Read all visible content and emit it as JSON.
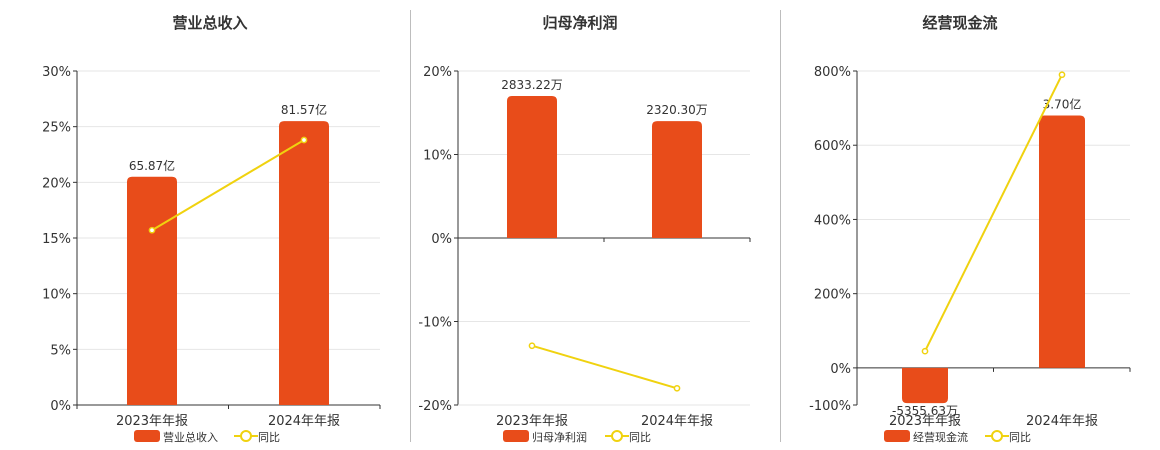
{
  "colors": {
    "bar": "#e84c1a",
    "line": "#f0d20f",
    "axis": "#333333",
    "grid": "#e6e6e6",
    "text": "#333333"
  },
  "legend": {
    "line_label": "同比"
  },
  "chart_data": [
    {
      "type": "bar",
      "title": "营业总收入",
      "categories": [
        "2023年年报",
        "2024年年报"
      ],
      "bar_labels": [
        "65.87亿",
        "81.57亿"
      ],
      "series": [
        {
          "name": "营业总收入",
          "kind": "bar",
          "values": [
            20.5,
            25.5
          ]
        },
        {
          "name": "同比",
          "kind": "line",
          "values": [
            15.7,
            23.8
          ]
        }
      ],
      "ylim": [
        0,
        30
      ],
      "yticks": [
        0,
        5,
        10,
        15,
        20,
        25,
        30
      ],
      "ytick_labels": [
        "0%",
        "5%",
        "10%",
        "15%",
        "20%",
        "25%",
        "30%"
      ],
      "grid": true,
      "legend_position": "bottom"
    },
    {
      "type": "bar",
      "title": "归母净利润",
      "categories": [
        "2023年年报",
        "2024年年报"
      ],
      "bar_labels": [
        "2833.22万",
        "2320.30万"
      ],
      "series": [
        {
          "name": "归母净利润",
          "kind": "bar",
          "values": [
            17.0,
            14.0
          ]
        },
        {
          "name": "同比",
          "kind": "line",
          "values": [
            -12.9,
            -18.0
          ]
        }
      ],
      "ylim": [
        -20,
        20
      ],
      "yticks": [
        -20,
        -10,
        0,
        10,
        20
      ],
      "ytick_labels": [
        "-20%",
        "-10%",
        "0%",
        "10%",
        "20%"
      ],
      "grid": true,
      "legend_position": "bottom"
    },
    {
      "type": "bar",
      "title": "经营现金流",
      "categories": [
        "2023年年报",
        "2024年年报"
      ],
      "bar_labels": [
        "-5355.63万",
        "3.70亿"
      ],
      "series": [
        {
          "name": "经营现金流",
          "kind": "bar",
          "values": [
            -95,
            680
          ]
        },
        {
          "name": "同比",
          "kind": "line",
          "values": [
            45,
            790
          ]
        }
      ],
      "ylim": [
        -100,
        800
      ],
      "yticks": [
        -100,
        0,
        200,
        400,
        600,
        800
      ],
      "ytick_labels": [
        "-100%",
        "0%",
        "200%",
        "400%",
        "600%",
        "800%"
      ],
      "grid": true,
      "legend_position": "bottom"
    }
  ]
}
